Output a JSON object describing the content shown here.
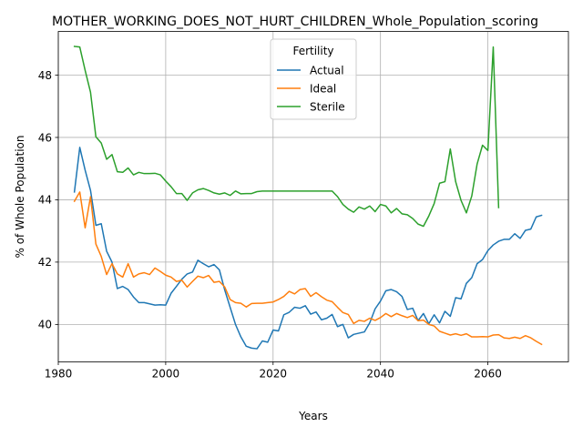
{
  "chart_data": {
    "type": "line",
    "title": "MOTHER_WORKING_DOES_NOT_HURT_CHILDREN_Whole_Population_scoring",
    "xlabel": "Years",
    "ylabel": "% of Whole Population",
    "xlim": [
      1980,
      2075
    ],
    "ylim": [
      38.8,
      49.4
    ],
    "xticks": [
      1980,
      2000,
      2020,
      2040,
      2060
    ],
    "yticks": [
      40,
      42,
      44,
      46,
      48
    ],
    "grid": true,
    "legend": {
      "title": "Fertility",
      "placement": "upper-center"
    },
    "series": [
      {
        "name": "Actual",
        "color": "#1f77b4",
        "points": [
          [
            1983,
            44.25
          ],
          [
            1984,
            45.68
          ],
          [
            1985,
            44.95
          ],
          [
            1986,
            44.3
          ],
          [
            1987,
            43.18
          ],
          [
            1988,
            43.23
          ],
          [
            1989,
            42.35
          ],
          [
            1990,
            42.0
          ],
          [
            1991,
            41.15
          ],
          [
            1992,
            41.22
          ],
          [
            1993,
            41.12
          ],
          [
            1994,
            40.88
          ],
          [
            1995,
            40.7
          ],
          [
            1996,
            40.7
          ],
          [
            1997,
            40.66
          ],
          [
            1998,
            40.62
          ],
          [
            1999,
            40.63
          ],
          [
            2000,
            40.62
          ],
          [
            2001,
            41.0
          ],
          [
            2002,
            41.22
          ],
          [
            2003,
            41.45
          ],
          [
            2004,
            41.62
          ],
          [
            2005,
            41.68
          ],
          [
            2006,
            42.06
          ],
          [
            2007,
            41.95
          ],
          [
            2008,
            41.85
          ],
          [
            2009,
            41.92
          ],
          [
            2010,
            41.75
          ],
          [
            2011,
            41.1
          ],
          [
            2012,
            40.55
          ],
          [
            2013,
            40.0
          ],
          [
            2014,
            39.6
          ],
          [
            2015,
            39.3
          ],
          [
            2016,
            39.24
          ],
          [
            2017,
            39.22
          ],
          [
            2018,
            39.47
          ],
          [
            2019,
            39.43
          ],
          [
            2020,
            39.82
          ],
          [
            2021,
            39.79
          ],
          [
            2022,
            40.31
          ],
          [
            2023,
            40.39
          ],
          [
            2024,
            40.55
          ],
          [
            2025,
            40.52
          ],
          [
            2026,
            40.6
          ],
          [
            2027,
            40.33
          ],
          [
            2028,
            40.4
          ],
          [
            2029,
            40.15
          ],
          [
            2030,
            40.2
          ],
          [
            2031,
            40.32
          ],
          [
            2032,
            39.93
          ],
          [
            2033,
            40.0
          ],
          [
            2034,
            39.57
          ],
          [
            2035,
            39.68
          ],
          [
            2036,
            39.72
          ],
          [
            2037,
            39.76
          ],
          [
            2038,
            40.05
          ],
          [
            2039,
            40.5
          ],
          [
            2040,
            40.75
          ],
          [
            2041,
            41.08
          ],
          [
            2042,
            41.12
          ],
          [
            2043,
            41.05
          ],
          [
            2044,
            40.9
          ],
          [
            2045,
            40.48
          ],
          [
            2046,
            40.52
          ],
          [
            2047,
            40.12
          ],
          [
            2048,
            40.35
          ],
          [
            2049,
            40.02
          ],
          [
            2050,
            40.31
          ],
          [
            2051,
            40.05
          ],
          [
            2052,
            40.42
          ],
          [
            2053,
            40.26
          ],
          [
            2054,
            40.86
          ],
          [
            2055,
            40.82
          ],
          [
            2056,
            41.32
          ],
          [
            2057,
            41.5
          ],
          [
            2058,
            41.95
          ],
          [
            2059,
            42.08
          ],
          [
            2060,
            42.37
          ],
          [
            2061,
            42.55
          ],
          [
            2062,
            42.67
          ],
          [
            2063,
            42.73
          ],
          [
            2064,
            42.73
          ],
          [
            2065,
            42.91
          ],
          [
            2066,
            42.76
          ],
          [
            2067,
            43.02
          ],
          [
            2068,
            43.06
          ],
          [
            2069,
            43.45
          ],
          [
            2070,
            43.5
          ]
        ]
      },
      {
        "name": "Ideal",
        "color": "#ff7f0e",
        "points": [
          [
            1983,
            43.95
          ],
          [
            1984,
            44.25
          ],
          [
            1985,
            43.1
          ],
          [
            1986,
            44.1
          ],
          [
            1987,
            42.58
          ],
          [
            1988,
            42.18
          ],
          [
            1989,
            41.6
          ],
          [
            1990,
            41.95
          ],
          [
            1991,
            41.62
          ],
          [
            1992,
            41.52
          ],
          [
            1993,
            41.95
          ],
          [
            1994,
            41.52
          ],
          [
            1995,
            41.62
          ],
          [
            1996,
            41.66
          ],
          [
            1997,
            41.6
          ],
          [
            1998,
            41.81
          ],
          [
            1999,
            41.7
          ],
          [
            2000,
            41.58
          ],
          [
            2001,
            41.52
          ],
          [
            2002,
            41.38
          ],
          [
            2003,
            41.42
          ],
          [
            2004,
            41.2
          ],
          [
            2005,
            41.38
          ],
          [
            2006,
            41.55
          ],
          [
            2007,
            41.5
          ],
          [
            2008,
            41.57
          ],
          [
            2009,
            41.35
          ],
          [
            2010,
            41.38
          ],
          [
            2011,
            41.2
          ],
          [
            2012,
            40.8
          ],
          [
            2013,
            40.7
          ],
          [
            2014,
            40.68
          ],
          [
            2015,
            40.56
          ],
          [
            2016,
            40.67
          ],
          [
            2017,
            40.68
          ],
          [
            2018,
            40.68
          ],
          [
            2019,
            40.7
          ],
          [
            2020,
            40.72
          ],
          [
            2021,
            40.8
          ],
          [
            2022,
            40.9
          ],
          [
            2023,
            41.06
          ],
          [
            2024,
            40.98
          ],
          [
            2025,
            41.12
          ],
          [
            2026,
            41.15
          ],
          [
            2027,
            40.9
          ],
          [
            2028,
            41.02
          ],
          [
            2029,
            40.89
          ],
          [
            2030,
            40.78
          ],
          [
            2031,
            40.73
          ],
          [
            2032,
            40.55
          ],
          [
            2033,
            40.38
          ],
          [
            2034,
            40.32
          ],
          [
            2035,
            40.03
          ],
          [
            2036,
            40.13
          ],
          [
            2037,
            40.1
          ],
          [
            2038,
            40.2
          ],
          [
            2039,
            40.13
          ],
          [
            2040,
            40.22
          ],
          [
            2041,
            40.35
          ],
          [
            2042,
            40.25
          ],
          [
            2043,
            40.35
          ],
          [
            2044,
            40.28
          ],
          [
            2045,
            40.22
          ],
          [
            2046,
            40.29
          ],
          [
            2047,
            40.12
          ],
          [
            2048,
            40.14
          ],
          [
            2049,
            40.0
          ],
          [
            2050,
            39.95
          ],
          [
            2051,
            39.78
          ],
          [
            2052,
            39.72
          ],
          [
            2053,
            39.66
          ],
          [
            2054,
            39.7
          ],
          [
            2055,
            39.65
          ],
          [
            2056,
            39.7
          ],
          [
            2057,
            39.6
          ],
          [
            2058,
            39.6
          ],
          [
            2059,
            39.61
          ],
          [
            2060,
            39.6
          ],
          [
            2061,
            39.66
          ],
          [
            2062,
            39.67
          ],
          [
            2063,
            39.57
          ],
          [
            2064,
            39.55
          ],
          [
            2065,
            39.59
          ],
          [
            2066,
            39.55
          ],
          [
            2067,
            39.64
          ],
          [
            2068,
            39.57
          ],
          [
            2069,
            39.46
          ],
          [
            2070,
            39.36
          ]
        ]
      },
      {
        "name": "Sterile",
        "color": "#2ca02c",
        "points": [
          [
            1983,
            48.92
          ],
          [
            1984,
            48.9
          ],
          [
            1985,
            48.15
          ],
          [
            1986,
            47.45
          ],
          [
            1987,
            46.02
          ],
          [
            1988,
            45.82
          ],
          [
            1989,
            45.3
          ],
          [
            1990,
            45.45
          ],
          [
            1991,
            44.9
          ],
          [
            1992,
            44.88
          ],
          [
            1993,
            45.02
          ],
          [
            1994,
            44.8
          ],
          [
            1995,
            44.88
          ],
          [
            1996,
            44.84
          ],
          [
            1997,
            44.84
          ],
          [
            1998,
            44.85
          ],
          [
            1999,
            44.8
          ],
          [
            2000,
            44.6
          ],
          [
            2001,
            44.42
          ],
          [
            2002,
            44.2
          ],
          [
            2003,
            44.2
          ],
          [
            2004,
            43.98
          ],
          [
            2005,
            44.22
          ],
          [
            2006,
            44.32
          ],
          [
            2007,
            44.36
          ],
          [
            2008,
            44.3
          ],
          [
            2009,
            44.22
          ],
          [
            2010,
            44.18
          ],
          [
            2011,
            44.22
          ],
          [
            2012,
            44.14
          ],
          [
            2013,
            44.28
          ],
          [
            2014,
            44.19
          ],
          [
            2015,
            44.2
          ],
          [
            2016,
            44.2
          ],
          [
            2017,
            44.26
          ],
          [
            2018,
            44.28
          ],
          [
            2019,
            44.28
          ],
          [
            2020,
            44.28
          ],
          [
            2021,
            44.28
          ],
          [
            2022,
            44.28
          ],
          [
            2023,
            44.28
          ],
          [
            2024,
            44.28
          ],
          [
            2025,
            44.28
          ],
          [
            2026,
            44.28
          ],
          [
            2027,
            44.28
          ],
          [
            2028,
            44.28
          ],
          [
            2029,
            44.28
          ],
          [
            2030,
            44.28
          ],
          [
            2031,
            44.28
          ],
          [
            2032,
            44.1
          ],
          [
            2033,
            43.85
          ],
          [
            2034,
            43.7
          ],
          [
            2035,
            43.6
          ],
          [
            2036,
            43.77
          ],
          [
            2037,
            43.7
          ],
          [
            2038,
            43.8
          ],
          [
            2039,
            43.62
          ],
          [
            2040,
            43.85
          ],
          [
            2041,
            43.8
          ],
          [
            2042,
            43.58
          ],
          [
            2043,
            43.72
          ],
          [
            2044,
            43.55
          ],
          [
            2045,
            43.52
          ],
          [
            2046,
            43.4
          ],
          [
            2047,
            43.22
          ],
          [
            2048,
            43.15
          ],
          [
            2049,
            43.48
          ],
          [
            2050,
            43.88
          ],
          [
            2051,
            44.53
          ],
          [
            2052,
            44.58
          ],
          [
            2053,
            45.63
          ],
          [
            2054,
            44.58
          ],
          [
            2055,
            43.98
          ],
          [
            2056,
            43.58
          ],
          [
            2057,
            44.12
          ],
          [
            2058,
            45.15
          ],
          [
            2059,
            45.75
          ],
          [
            2060,
            45.58
          ],
          [
            2061,
            48.9
          ],
          [
            2062,
            43.75
          ]
        ]
      }
    ]
  }
}
